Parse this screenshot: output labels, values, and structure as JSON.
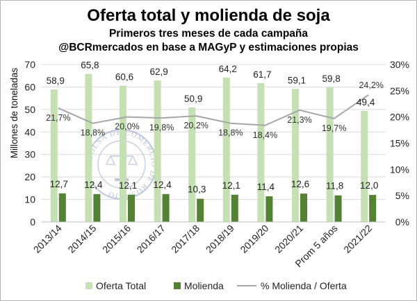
{
  "chart_data": {
    "type": "bar",
    "title": "Oferta total y molienda de soja",
    "subtitle_1": "Primeros tres meses de cada campaña",
    "subtitle_2": "@BCRmercados en base a MAGyP y estimaciones propias",
    "ylabel": "Millones de toneladas",
    "ylim": [
      0,
      70
    ],
    "yticks": [
      "0",
      "10",
      "20",
      "30",
      "40",
      "50",
      "60",
      "70"
    ],
    "y2lim": [
      0,
      30
    ],
    "y2ticks": [
      "0%",
      "5%",
      "10%",
      "15%",
      "20%",
      "25%",
      "30%"
    ],
    "categories": [
      "2013/14",
      "2014/15",
      "2015/16",
      "2016/17",
      "2017/18",
      "2018/19",
      "2019/20",
      "2020/21",
      "Prom 5 años",
      "2021/22"
    ],
    "series": [
      {
        "name": "Oferta Total",
        "type": "bar",
        "color": "#c5e0b3",
        "values": [
          58.9,
          65.8,
          60.6,
          62.9,
          50.9,
          64.2,
          61.7,
          59.1,
          59.8,
          49.4
        ],
        "labels": [
          "58,9",
          "65,8",
          "60,6",
          "62,9",
          "50,9",
          "64,2",
          "61,7",
          "59,1",
          "59,8",
          "49,4"
        ]
      },
      {
        "name": "Molienda",
        "type": "bar",
        "color": "#548235",
        "values": [
          12.7,
          12.4,
          12.1,
          12.4,
          10.3,
          12.1,
          11.4,
          12.6,
          11.8,
          12.0
        ],
        "labels": [
          "12,7",
          "12,4",
          "12,1",
          "12,4",
          "10,3",
          "12,1",
          "11,4",
          "12,6",
          "11,8",
          "12,0"
        ]
      },
      {
        "name": "% Molienda / Oferta",
        "type": "line",
        "axis": "secondary",
        "color": "#a6a6a6",
        "values": [
          21.7,
          18.8,
          20.0,
          19.8,
          20.2,
          18.8,
          18.4,
          21.3,
          19.7,
          24.2
        ],
        "labels": [
          "21,7%",
          "18,8%",
          "20,0%",
          "19,8%",
          "20,2%",
          "18,8%",
          "18,4%",
          "21,3%",
          "19,7%",
          "24,2%"
        ]
      }
    ],
    "legend_position": "bottom"
  },
  "watermark_text": "BOLSA DE COMERCIO DE ROSARIO"
}
